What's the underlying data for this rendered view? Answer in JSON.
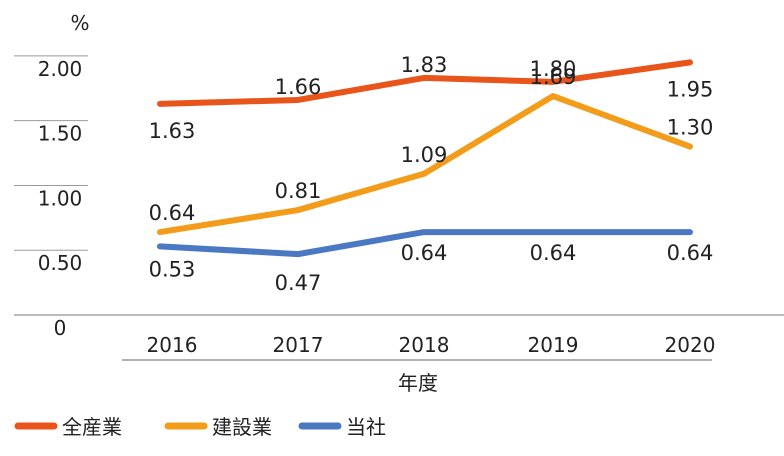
{
  "chart_data": {
    "type": "line",
    "unit_label": "%",
    "xlabel": "年度",
    "categories": [
      "2016",
      "2017",
      "2018",
      "2019",
      "2020"
    ],
    "y_ticks": [
      "0",
      "0.50",
      "1.00",
      "1.50",
      "2.00"
    ],
    "ylim": [
      0,
      2.2
    ],
    "grid": true,
    "legend_position": "bottom-left",
    "series": [
      {
        "name": "全産業",
        "color": "#e8541a",
        "values": [
          1.63,
          1.66,
          1.83,
          1.8,
          1.95
        ],
        "labels": [
          "1.63",
          "1.66",
          "1.83",
          "1.80",
          "1.95"
        ]
      },
      {
        "name": "建設業",
        "color": "#f39c1a",
        "values": [
          0.64,
          0.81,
          1.09,
          1.69,
          1.3
        ],
        "labels": [
          "0.64",
          "0.81",
          "1.09",
          "1.69",
          "1.30"
        ]
      },
      {
        "name": "当社",
        "color": "#4a78c2",
        "values": [
          0.53,
          0.47,
          0.64,
          0.64,
          0.64
        ],
        "labels": [
          "0.53",
          "0.47",
          "0.64",
          "0.64",
          "0.64"
        ]
      }
    ]
  }
}
